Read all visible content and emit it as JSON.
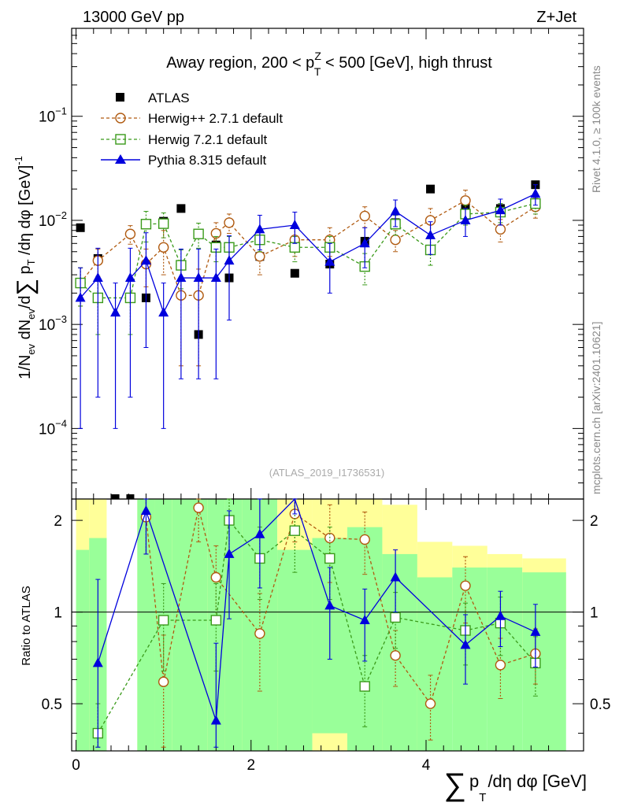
{
  "header": {
    "left": "13000 GeV pp",
    "right": "Z+Jet"
  },
  "side_labels": {
    "rivet": "Rivet 4.1.0, ≥ 100k events",
    "mcplots": "mcplots.cern.ch [arXiv:2401.10621]"
  },
  "chart_data": {
    "type": "scatter",
    "title": "Away region, 200 < p_T^Z < 500 [GeV], high thrust",
    "title_parts": {
      "pre": "Away region, 200 < p",
      "sup": "Z",
      "sub": "T",
      "post": " < 500 [GeV], high thrust"
    },
    "analysis_id": "(ATLAS_2019_I1736531)",
    "xlabel": "∑ p_T /dη dφ [GeV]",
    "xlabel_parts": {
      "sum": "∑",
      "p": "p",
      "sub": "T",
      "rest": "/dη dφ [GeV]"
    },
    "ylabel": "1/N_ev dN_ev/d∑ p_T /dη dφ [GeV]^-1",
    "ylabel_parts": {
      "a": "1/N",
      "a_sub": "ev",
      "b": " dN",
      "b_sub": "ev",
      "c": "/d",
      "sum": "∑",
      "p": " p",
      "p_sub": "T",
      "d": " /dη dφ  [GeV]",
      "sup": "-1"
    },
    "ratio_ylabel": "Ratio to ATLAS",
    "xlim": [
      -0.05,
      5.8
    ],
    "ylim": [
      2.1e-05,
      0.7
    ],
    "yscale": "log",
    "ratio_ylim": [
      0.35,
      2.35
    ],
    "x_ticks": [
      "0",
      "2",
      "4"
    ],
    "y_ticks": [
      "10^-1",
      "10^-2",
      "10^-3",
      "10^-4"
    ],
    "ratio_ticks": [
      "2",
      "1",
      "0.5"
    ],
    "ratio_ticks_right": [
      "2",
      "1",
      "0.5"
    ],
    "legend": [
      "ATLAS",
      "Herwig++ 2.7.1 default",
      "Herwig 7.2.1 default",
      "Pythia 8.315 default"
    ],
    "series": [
      {
        "name": "ATLAS",
        "color": "#000000",
        "x": [
          0.05,
          0.25,
          0.8,
          1.0,
          1.2,
          1.4,
          1.6,
          1.75,
          2.1,
          2.5,
          2.9,
          3.3,
          3.65,
          4.05,
          4.45,
          4.85,
          5.25
        ],
        "y": [
          0.0085,
          0.0043,
          0.0018,
          0.0098,
          0.013,
          0.0008,
          0.0058,
          0.0028,
          0.0045,
          0.0031,
          0.0038,
          0.0063,
          0.0095,
          0.02,
          0.013,
          0.013,
          0.022
        ]
      },
      {
        "name": "Herwig++ 2.7.1 default",
        "color": "#b05a10",
        "x": [
          0.05,
          0.25,
          0.62,
          0.8,
          1.0,
          1.2,
          1.4,
          1.6,
          1.75,
          2.1,
          2.5,
          2.9,
          3.3,
          3.65,
          4.05,
          4.45,
          4.85,
          5.25
        ],
        "y": [
          0.0025,
          0.0041,
          0.0074,
          0.0038,
          0.0055,
          0.0019,
          0.0019,
          0.0075,
          0.0095,
          0.0045,
          0.0065,
          0.0065,
          0.011,
          0.0065,
          0.01,
          0.0155,
          0.0082,
          0.0135
        ],
        "yerr": [
          0.001,
          0.0012,
          0.0015,
          0.0015,
          0.0025,
          0.0015,
          0.0015,
          0.002,
          0.002,
          0.0015,
          0.002,
          0.002,
          0.0025,
          0.0015,
          0.003,
          0.004,
          0.002,
          0.003
        ]
      },
      {
        "name": "Herwig 7.2.1 default",
        "color": "#3a9a1a",
        "x": [
          0.05,
          0.25,
          0.62,
          0.8,
          1.0,
          1.2,
          1.4,
          1.6,
          1.75,
          2.1,
          2.5,
          2.9,
          3.3,
          3.65,
          4.05,
          4.45,
          4.85,
          5.25
        ],
        "y": [
          0.0025,
          0.0018,
          0.0018,
          0.0092,
          0.0093,
          0.0037,
          0.0074,
          0.0055,
          0.0055,
          0.0065,
          0.0055,
          0.0055,
          0.0036,
          0.0092,
          0.0052,
          0.0115,
          0.012,
          0.0145
        ],
        "yerr": [
          0.001,
          0.001,
          0.001,
          0.003,
          0.0025,
          0.0015,
          0.002,
          0.0015,
          0.0015,
          0.0015,
          0.0015,
          0.0015,
          0.0012,
          0.002,
          0.0015,
          0.0025,
          0.0025,
          0.003
        ]
      },
      {
        "name": "Pythia 8.315 default",
        "color": "#0000dd",
        "x": [
          0.05,
          0.25,
          0.45,
          0.62,
          0.8,
          1.0,
          1.2,
          1.4,
          1.6,
          1.75,
          2.1,
          2.5,
          2.9,
          3.3,
          3.65,
          4.05,
          4.45,
          4.85,
          5.25
        ],
        "y": [
          0.0018,
          0.0028,
          0.0013,
          0.0028,
          0.0041,
          0.0013,
          0.0028,
          0.0028,
          0.0028,
          0.0041,
          0.0082,
          0.009,
          0.004,
          0.006,
          0.0122,
          0.0072,
          0.01,
          0.0125,
          0.018
        ],
        "yerr": [
          0.0017,
          0.0026,
          0.0012,
          0.0026,
          0.0035,
          0.0012,
          0.0025,
          0.0025,
          0.0025,
          0.003,
          0.003,
          0.003,
          0.002,
          0.0025,
          0.0035,
          0.0025,
          0.003,
          0.0035,
          0.004
        ]
      }
    ],
    "ratio_series": [
      {
        "name": "Herwig++ 2.7.1 default",
        "x": [
          0.8,
          1.0,
          1.4,
          1.6,
          2.1,
          2.5,
          2.9,
          3.3,
          3.65,
          4.05,
          4.45,
          4.85,
          5.25
        ],
        "y": [
          2.05,
          0.59,
          2.2,
          1.3,
          0.85,
          2.1,
          1.75,
          1.73,
          0.72,
          0.5,
          1.22,
          0.67,
          0.73
        ],
        "yerr": [
          0.5,
          0.25,
          0.5,
          0.35,
          0.3,
          0.4,
          0.5,
          0.4,
          0.15,
          0.12,
          0.3,
          0.15,
          0.15
        ]
      },
      {
        "name": "Herwig 7.2.1 default",
        "x": [
          0.25,
          1.0,
          1.6,
          1.75,
          2.1,
          2.5,
          2.9,
          3.3,
          3.65,
          4.45,
          4.85,
          5.25
        ],
        "y": [
          0.4,
          0.94,
          0.94,
          2.0,
          1.5,
          1.85,
          1.5,
          0.57,
          0.96,
          0.87,
          0.92,
          0.68
        ],
        "yerr": [
          0.1,
          0.3,
          0.3,
          0.45,
          0.4,
          0.5,
          0.4,
          0.15,
          0.2,
          0.2,
          0.2,
          0.15
        ]
      },
      {
        "name": "Pythia 8.315 default",
        "x": [
          0.25,
          0.8,
          1.6,
          1.75,
          2.1,
          2.5,
          2.9,
          3.3,
          3.65,
          4.45,
          4.85,
          5.25
        ],
        "y": [
          0.68,
          2.15,
          0.44,
          1.55,
          1.8,
          2.9,
          1.05,
          0.94,
          1.3,
          0.78,
          0.97,
          0.86
        ],
        "yerr": [
          0.6,
          0.6,
          0.35,
          0.6,
          0.6,
          0.8,
          0.35,
          0.25,
          0.3,
          0.2,
          0.2,
          0.2
        ]
      }
    ],
    "ratio_bands": {
      "edges": [
        0,
        0.15,
        0.35,
        0.7,
        0.9,
        1.1,
        1.3,
        1.5,
        1.7,
        1.9,
        2.3,
        2.7,
        3.1,
        3.5,
        3.9,
        4.3,
        4.7,
        5.1,
        5.6
      ],
      "green_lo": [
        0.35,
        0.35,
        null,
        0.35,
        0.35,
        0.35,
        0.35,
        0.35,
        0.35,
        0.35,
        0.35,
        0.4,
        0.35,
        0.35,
        0.35,
        0.35,
        0.35,
        0.35
      ],
      "green_hi": [
        1.6,
        1.75,
        null,
        2.35,
        2.35,
        2.35,
        2.35,
        2.35,
        2.35,
        2.35,
        1.6,
        1.75,
        1.9,
        1.55,
        1.3,
        1.4,
        1.4,
        1.35
      ],
      "yellow_lo": [
        0.35,
        0.35,
        null,
        0.35,
        0.35,
        0.35,
        0.35,
        0.35,
        0.35,
        0.35,
        0.35,
        0.35,
        0.35,
        0.35,
        0.55,
        0.5,
        0.62,
        0.65
      ],
      "yellow_hi": [
        2.35,
        2.35,
        null,
        2.35,
        2.35,
        2.35,
        2.35,
        2.35,
        2.35,
        2.35,
        2.35,
        2.35,
        2.35,
        2.25,
        1.7,
        1.65,
        1.55,
        1.5
      ]
    }
  },
  "colors": {
    "band_green": "#99ff99",
    "band_yellow": "#ffff99",
    "herwigpp": "#b05a10",
    "herwig7": "#3a9a1a",
    "pythia": "#0000dd",
    "atlas": "#000000"
  }
}
